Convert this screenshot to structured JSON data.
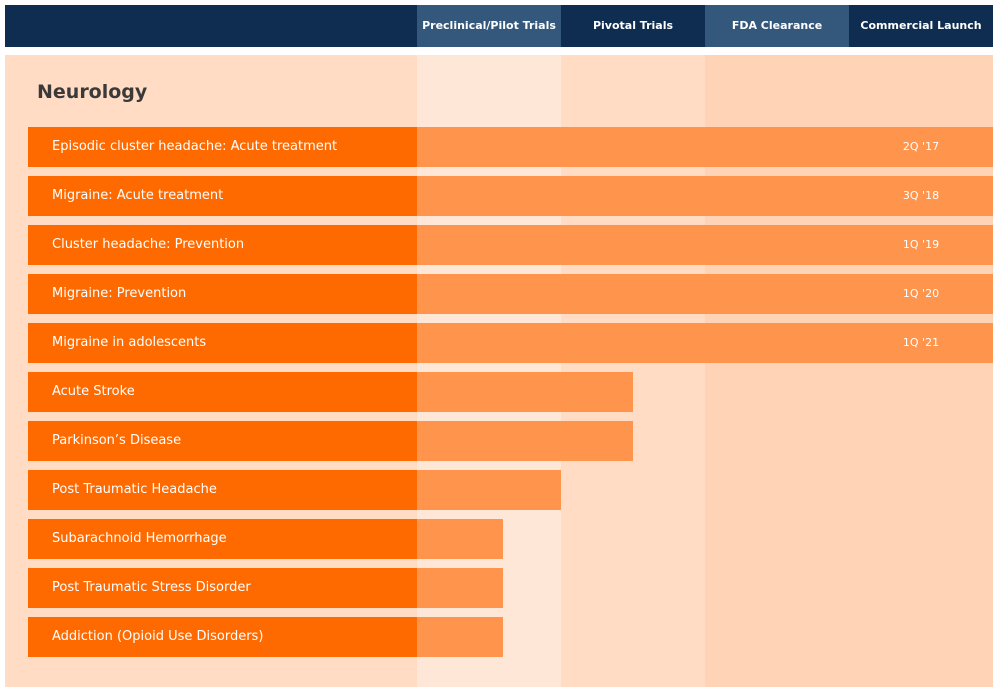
{
  "colors": {
    "header_bg": "#0e2d50",
    "header_highlight": "#34587c",
    "label_fill": "#ff6a00",
    "bar_fill": "#ff944d",
    "band_light": "#ffe7d7",
    "band_mid": "#ffdcc3",
    "band_dark": "#ffd3b5"
  },
  "chart_data": {
    "type": "bar",
    "orientation": "horizontal",
    "title": "Neurology",
    "stages": [
      "Preclinical/Pilot Trials",
      "Pivotal Trials",
      "FDA Clearance",
      "Commercial Launch"
    ],
    "stage_range": [
      0,
      4
    ],
    "categories": [
      "Episodic cluster headache: Acute treatment",
      "Migraine: Acute treatment",
      "Cluster headache: Prevention",
      "Migraine: Prevention",
      "Migraine in adolescents",
      "Acute Stroke",
      "Parkinson’s Disease",
      "Post Traumatic Headache",
      "Subarachnoid Hemorrhage",
      "Post Traumatic Stress Disorder",
      "Addiction (Opioid Use Disorders)"
    ],
    "values": [
      4.0,
      4.0,
      4.0,
      4.0,
      4.0,
      1.5,
      1.5,
      1.0,
      0.6,
      0.6,
      0.6
    ],
    "dates": [
      "2Q '17",
      "3Q '18",
      "1Q '19",
      "1Q '20",
      "1Q '21",
      "",
      "",
      "",
      "",
      "",
      ""
    ]
  }
}
